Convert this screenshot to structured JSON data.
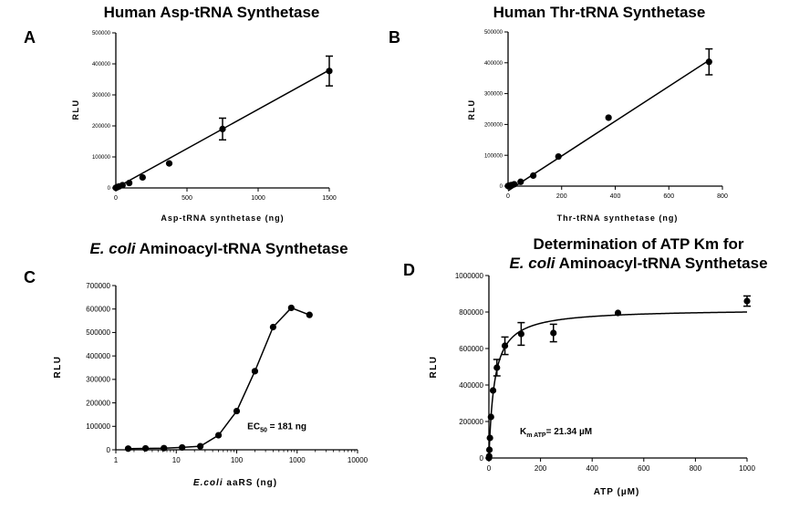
{
  "chart_data": [
    {
      "id": "A",
      "type": "scatter",
      "panel_letter": "A",
      "title": "Human Asp-tRNA Synthetase",
      "xlabel": "Asp-tRNA synthetase (ng)",
      "ylabel": "RLU",
      "xscale": "linear",
      "xlim": [
        0,
        1500
      ],
      "ylim": [
        0,
        500000
      ],
      "xticks": [
        0,
        500,
        1000,
        1500
      ],
      "xtick_labels": [
        "0",
        "500",
        "1000",
        "1500"
      ],
      "yticks": [
        0,
        100000,
        200000,
        300000,
        400000,
        500000
      ],
      "ytick_labels": [
        "0",
        "100000",
        "200000",
        "300000",
        "400000",
        "500000"
      ],
      "series": [
        {
          "x": [
            0,
            6,
            12,
            23,
            47,
            94,
            188,
            375,
            750,
            1500
          ],
          "y": [
            500,
            1500,
            3000,
            5000,
            9000,
            16000,
            34000,
            79000,
            190000,
            377000
          ],
          "err": [
            0,
            0,
            0,
            0,
            0,
            0,
            0,
            0,
            35000,
            48000
          ]
        }
      ],
      "fit": {
        "kind": "linear",
        "x": [
          0,
          1500
        ],
        "y": [
          0,
          380000
        ]
      },
      "grid": false
    },
    {
      "id": "B",
      "type": "scatter",
      "panel_letter": "B",
      "title": "Human Thr-tRNA Synthetase",
      "xlabel": "Thr-tRNA synthetase (ng)",
      "ylabel": "RLU",
      "xscale": "linear",
      "xlim": [
        0,
        800
      ],
      "ylim": [
        0,
        500000
      ],
      "xticks": [
        0,
        200,
        400,
        600,
        800
      ],
      "xtick_labels": [
        "0",
        "200",
        "400",
        "600",
        "800"
      ],
      "yticks": [
        0,
        100000,
        200000,
        300000,
        400000,
        500000
      ],
      "ytick_labels": [
        "0",
        "100000",
        "200000",
        "300000",
        "400000",
        "500000"
      ],
      "series": [
        {
          "x": [
            0,
            3,
            6,
            12,
            23,
            47,
            94,
            188,
            375,
            750
          ],
          "y": [
            500,
            1000,
            2000,
            3500,
            6000,
            14000,
            34000,
            96000,
            222000,
            403000
          ],
          "err": [
            0,
            0,
            0,
            0,
            0,
            0,
            0,
            0,
            0,
            42000
          ]
        }
      ],
      "fit": {
        "kind": "linear",
        "x": [
          0,
          750
        ],
        "y": [
          -15000,
          408000
        ]
      },
      "grid": false
    },
    {
      "id": "C",
      "type": "line",
      "panel_letter": "C",
      "title_italic": "E. coli",
      "title_rest": " Aminoacyl-tRNA Synthetase",
      "xlabel_italic": "E.coli",
      "xlabel_rest": " aaRS (ng)",
      "ylabel": "RLU",
      "xscale": "log",
      "xlim": [
        1,
        10000
      ],
      "ylim": [
        0,
        700000
      ],
      "xticks": [
        1,
        10,
        100,
        1000,
        10000
      ],
      "xtick_labels": [
        "1",
        "10",
        "100",
        "1000",
        "10000"
      ],
      "yticks": [
        0,
        100000,
        200000,
        300000,
        400000,
        500000,
        600000,
        700000
      ],
      "ytick_labels": [
        "0",
        "100000",
        "200000",
        "300000",
        "400000",
        "500000",
        "600000",
        "700000"
      ],
      "series": [
        {
          "x": [
            1.6,
            3.1,
            6.25,
            12.5,
            25,
            50,
            100,
            200,
            400,
            800,
            1600
          ],
          "y": [
            5000,
            6000,
            7000,
            10000,
            15000,
            62000,
            165000,
            335000,
            523000,
            605000,
            575000
          ]
        }
      ],
      "annotation": {
        "prefix": "EC",
        "sub": "50",
        "suffix": " = 181 ng",
        "x": 150,
        "y": 88000
      },
      "grid": false
    },
    {
      "id": "D",
      "type": "scatter",
      "panel_letter": "D",
      "title_line1": "Determination of ATP Km for",
      "title_line2_italic": "E. coli",
      "title_line2_rest": " Aminoacyl-tRNA Synthetase",
      "xlabel": "ATP (µM)",
      "ylabel": "RLU",
      "xscale": "linear",
      "xlim": [
        0,
        1000
      ],
      "ylim": [
        0,
        1000000
      ],
      "xticks": [
        0,
        200,
        400,
        600,
        800,
        1000
      ],
      "xtick_labels": [
        "0",
        "200",
        "400",
        "600",
        "800",
        "1000"
      ],
      "yticks": [
        0,
        200000,
        400000,
        600000,
        800000,
        1000000
      ],
      "ytick_labels": [
        "0",
        "200000",
        "400000",
        "600000",
        "800000",
        "1000000"
      ],
      "series": [
        {
          "x": [
            0,
            1,
            2,
            4,
            8,
            16,
            31,
            62,
            125,
            250,
            500,
            1000
          ],
          "y": [
            0,
            10000,
            45000,
            110000,
            225000,
            370000,
            495000,
            615000,
            680000,
            685000,
            795000,
            860000
          ],
          "err": [
            0,
            0,
            0,
            0,
            0,
            0,
            45000,
            48000,
            62000,
            48000,
            0,
            28000
          ]
        }
      ],
      "fit": {
        "kind": "michaelis-menten",
        "vmax": 817000,
        "km": 21.34
      },
      "annotation": {
        "prefix": "K",
        "sub": "m ATP",
        "suffix": "= 21.34 µM",
        "x": 120,
        "y": 130000
      },
      "grid": false
    }
  ]
}
